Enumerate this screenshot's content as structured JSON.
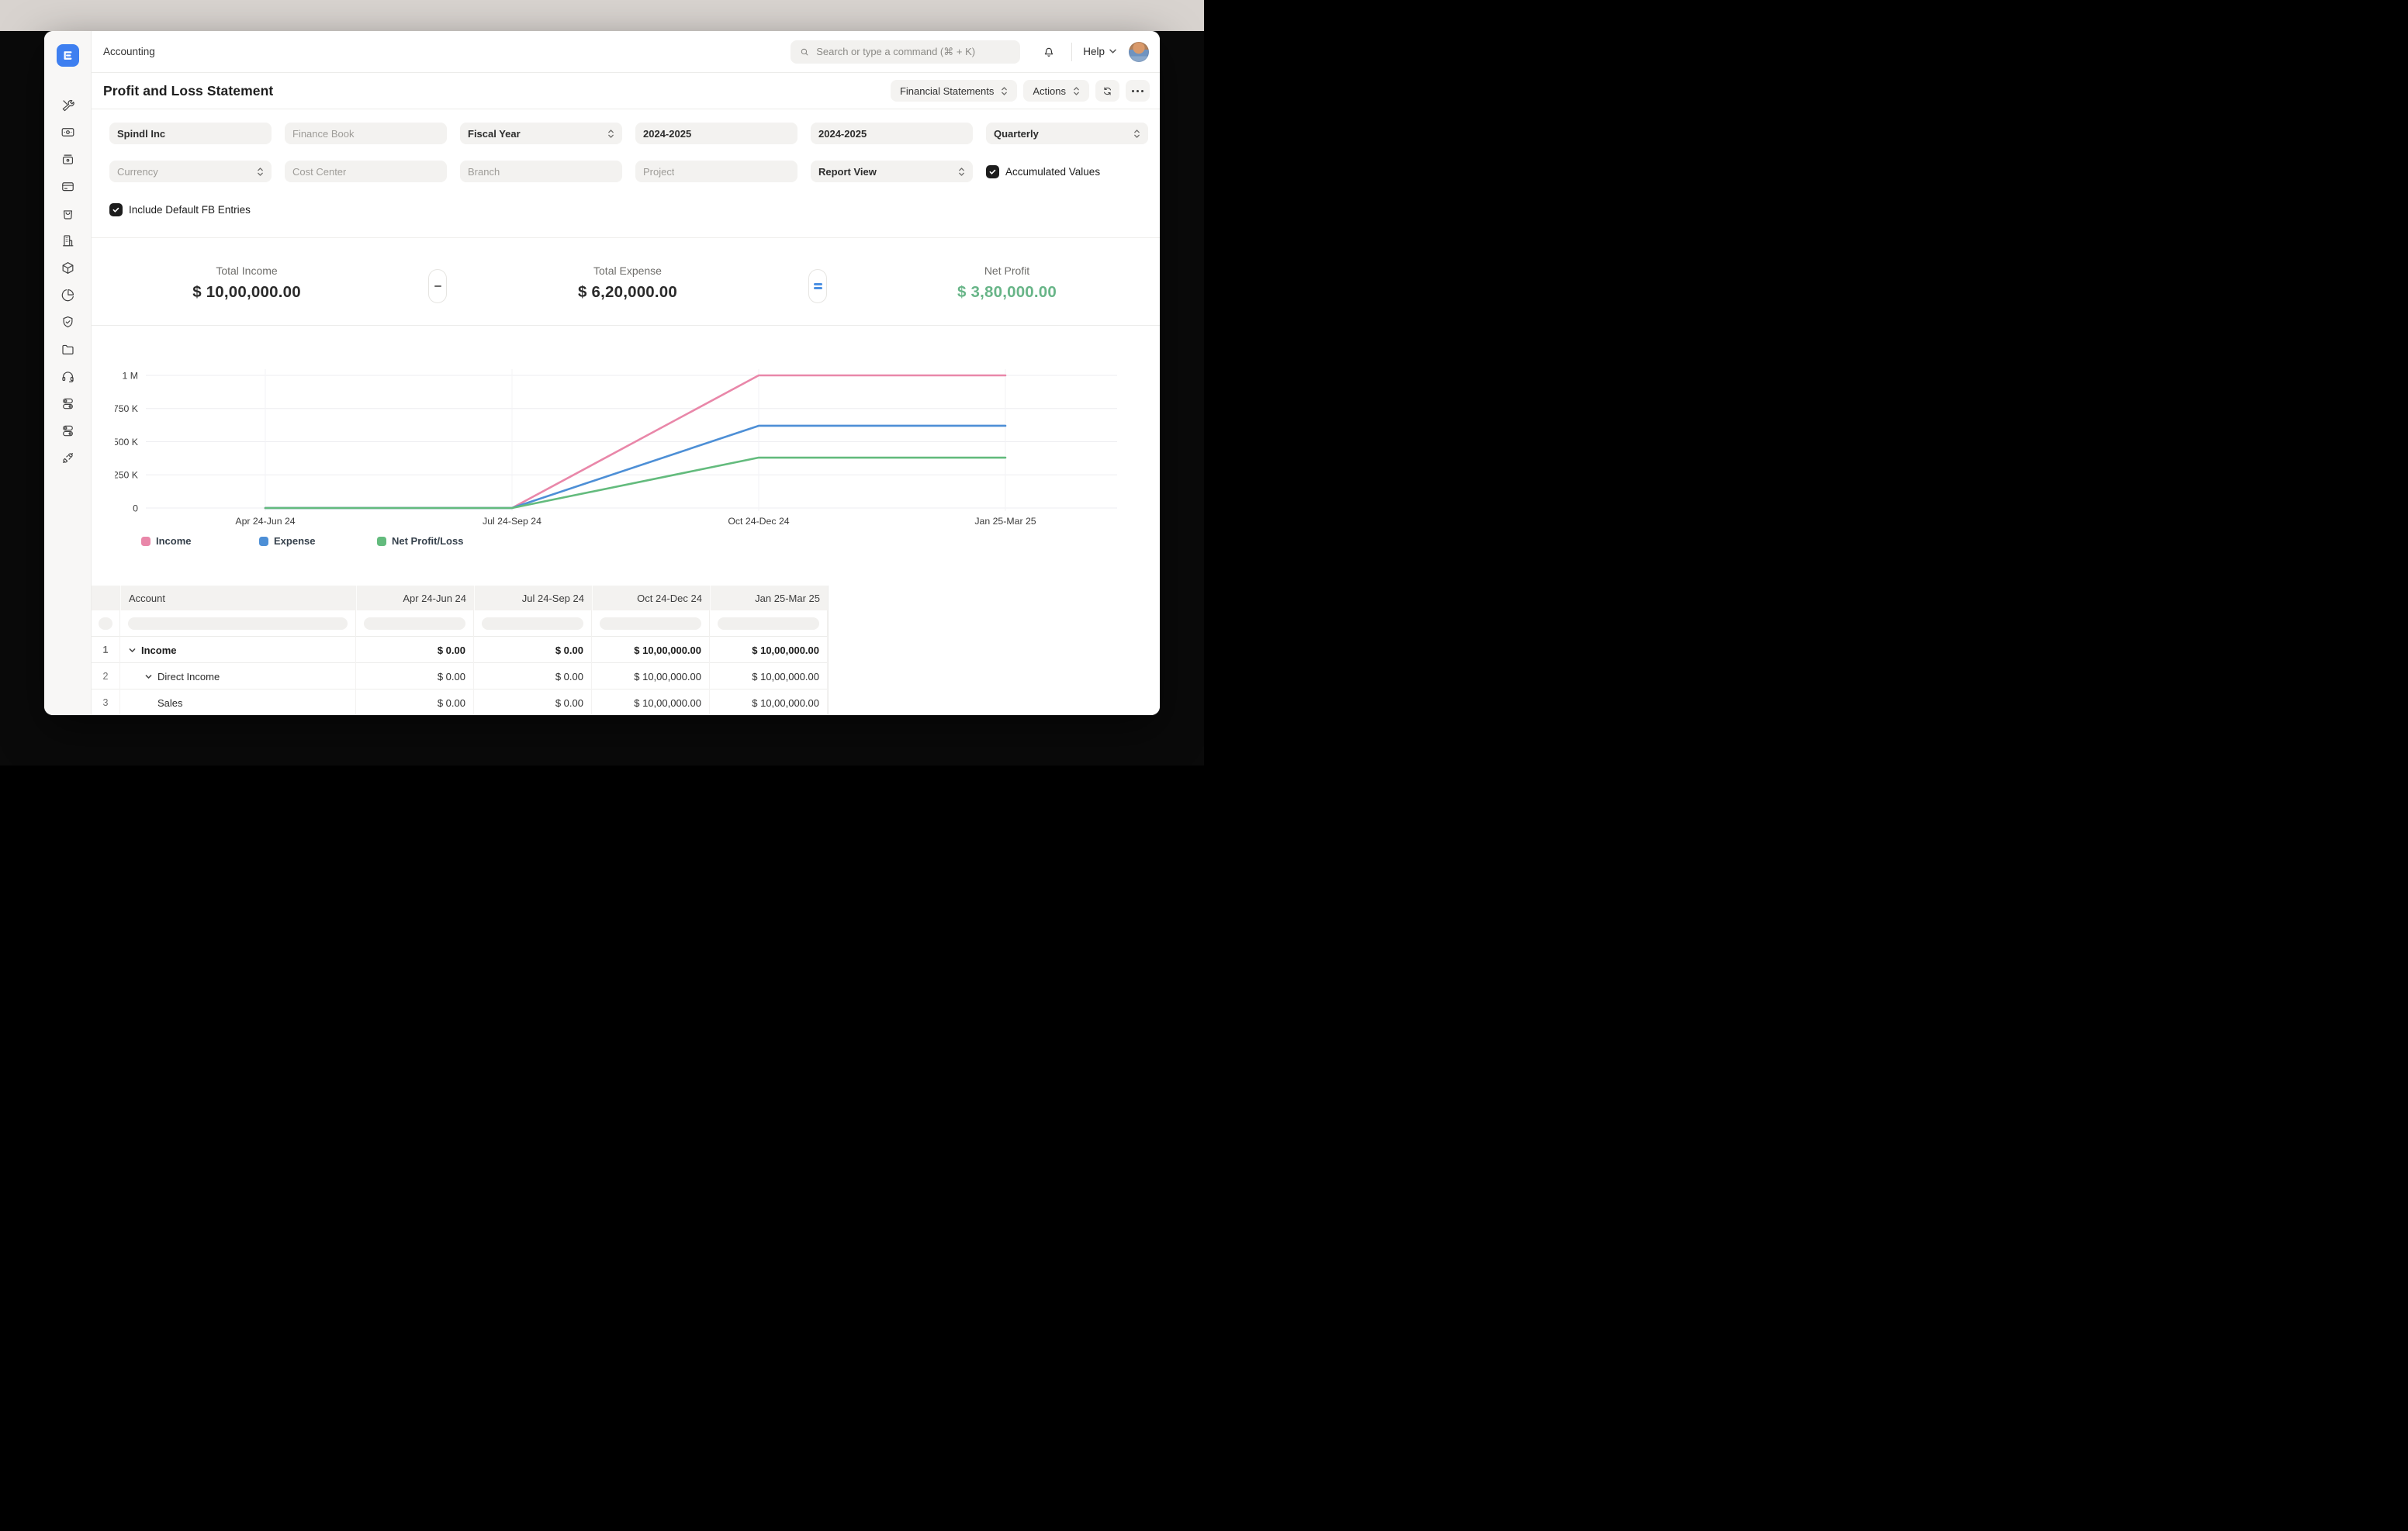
{
  "topbar": {
    "app_label": "Accounting",
    "search_placeholder": "Search or type a command (⌘ + K)",
    "help_label": "Help"
  },
  "page": {
    "title": "Profit and Loss Statement",
    "buttons": {
      "report_group": "Financial Statements",
      "actions": "Actions"
    }
  },
  "filters": {
    "row1": [
      {
        "text": "Spindl Inc",
        "style": "value"
      },
      {
        "text": "Finance Book",
        "style": "placeholder"
      },
      {
        "text": "Fiscal Year",
        "style": "value",
        "select": true
      },
      {
        "text": "2024-2025",
        "style": "value"
      },
      {
        "text": "2024-2025",
        "style": "value"
      },
      {
        "text": "Quarterly",
        "style": "value",
        "select": true
      }
    ],
    "row2": [
      {
        "text": "Currency",
        "style": "placeholder",
        "select": true
      },
      {
        "text": "Cost Center",
        "style": "placeholder"
      },
      {
        "text": "Branch",
        "style": "placeholder"
      },
      {
        "text": "Project",
        "style": "placeholder"
      },
      {
        "text": "Report View",
        "style": "value",
        "select": true
      }
    ],
    "accumulated_values": {
      "label": "Accumulated Values",
      "checked": true
    },
    "include_default_fb": {
      "label": "Include Default FB Entries",
      "checked": true
    }
  },
  "summary": {
    "income": {
      "label": "Total Income",
      "value": "$ 10,00,000.00"
    },
    "minus_op": "-",
    "expense": {
      "label": "Total Expense",
      "value": "$ 6,20,000.00"
    },
    "equals_op": "=",
    "net": {
      "label": "Net Profit",
      "value": "$ 3,80,000.00",
      "color": "#68b588"
    }
  },
  "chart_data": {
    "type": "line",
    "categories": [
      "Apr 24-Jun 24",
      "Jul 24-Sep 24",
      "Oct 24-Dec 24",
      "Jan 25-Mar 25"
    ],
    "series": [
      {
        "name": "Income",
        "color": "#e987a9",
        "values": [
          0,
          0,
          1000000,
          1000000
        ]
      },
      {
        "name": "Expense",
        "color": "#4d8fd6",
        "values": [
          0,
          0,
          620000,
          620000
        ]
      },
      {
        "name": "Net Profit/Loss",
        "color": "#63bb7d",
        "values": [
          0,
          0,
          380000,
          380000
        ]
      }
    ],
    "ylim": [
      0,
      1000000
    ],
    "yticks": [
      "0",
      "250 K",
      "500 K",
      "750 K",
      "1 M"
    ],
    "grid": true,
    "legend_position": "bottom"
  },
  "table": {
    "columns": [
      "Account",
      "Apr 24-Jun 24",
      "Jul 24-Sep 24",
      "Oct 24-Dec 24",
      "Jan 25-Mar 25"
    ],
    "rows": [
      {
        "num": "1",
        "account": "Income",
        "indent": 0,
        "expandable": true,
        "bold": true,
        "values": [
          "$ 0.00",
          "$ 0.00",
          "$ 10,00,000.00",
          "$ 10,00,000.00"
        ]
      },
      {
        "num": "2",
        "account": "Direct Income",
        "indent": 1,
        "expandable": true,
        "bold": false,
        "values": [
          "$ 0.00",
          "$ 0.00",
          "$ 10,00,000.00",
          "$ 10,00,000.00"
        ]
      },
      {
        "num": "3",
        "account": "Sales",
        "indent": 2,
        "expandable": false,
        "bold": false,
        "values": [
          "$ 0.00",
          "$ 0.00",
          "$ 10,00,000.00",
          "$ 10,00,000.00"
        ]
      }
    ]
  },
  "sidebar": {
    "icons": [
      "tools",
      "banknote",
      "cash-register",
      "credit-card",
      "shopping-bag",
      "building",
      "package",
      "pie-chart",
      "shield-check",
      "folder",
      "headset",
      "toggles",
      "toggles",
      "plug"
    ]
  }
}
